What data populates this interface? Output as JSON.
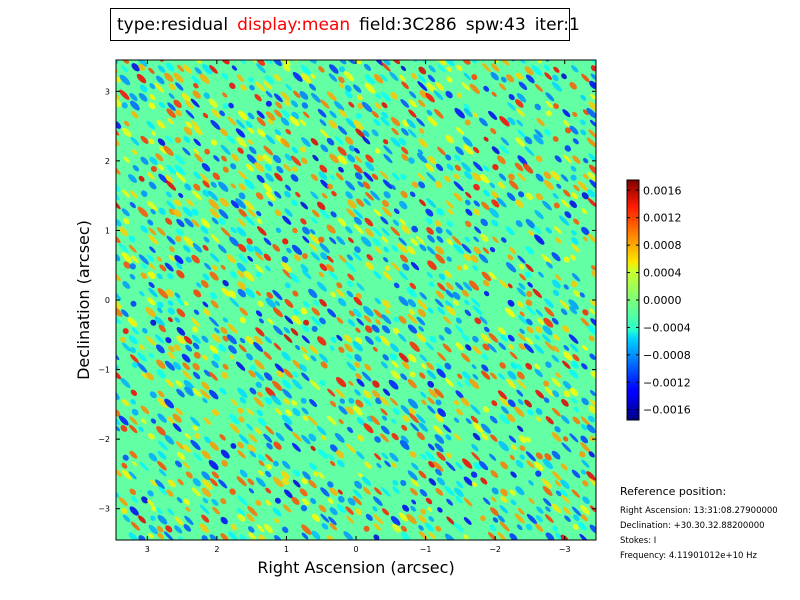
{
  "title": {
    "type": "type:residual",
    "display": "display:mean",
    "field": "field:3C286",
    "spw": "spw:43",
    "iter": "iter:1",
    "display_color": "#ff0000"
  },
  "reference": {
    "title": "Reference position:",
    "ra": "Right Ascension: 13:31:08.27900000",
    "dec": "Declination: +30.30.32.88200000",
    "stokes": "Stokes: I",
    "frequency": "Frequency: 4.11901012e+10 Hz"
  },
  "chart_data": {
    "type": "heatmap",
    "xlabel": "Right Ascension (arcsec)",
    "ylabel": "Declination (arcsec)",
    "xlim": [
      3.45,
      -3.45
    ],
    "ylim": [
      -3.45,
      3.45
    ],
    "x_ticks": [
      {
        "value": 3,
        "label": "3"
      },
      {
        "value": 2,
        "label": "2"
      },
      {
        "value": 1,
        "label": "1"
      },
      {
        "value": 0,
        "label": "0"
      },
      {
        "value": -1,
        "label": "−1"
      },
      {
        "value": -2,
        "label": "−2"
      },
      {
        "value": -3,
        "label": "−3"
      }
    ],
    "y_ticks": [
      {
        "value": 3,
        "label": "3"
      },
      {
        "value": 2,
        "label": "2"
      },
      {
        "value": 1,
        "label": "1"
      },
      {
        "value": 0,
        "label": "0"
      },
      {
        "value": -1,
        "label": "−1"
      },
      {
        "value": -2,
        "label": "−2"
      },
      {
        "value": -3,
        "label": "−3"
      }
    ],
    "colormap": "jet",
    "colorbar": {
      "vmin": -0.00175,
      "vmax": 0.00175,
      "ticks": [
        {
          "value": 0.0016,
          "label": "0.0016"
        },
        {
          "value": 0.0012,
          "label": "0.0012"
        },
        {
          "value": 0.0008,
          "label": "0.0008"
        },
        {
          "value": 0.0004,
          "label": "0.0004"
        },
        {
          "value": 0.0,
          "label": "0.0000"
        },
        {
          "value": -0.0004,
          "label": "−0.0004"
        },
        {
          "value": -0.0008,
          "label": "−0.0008"
        },
        {
          "value": -0.0012,
          "label": "−0.0012"
        },
        {
          "value": -0.0016,
          "label": "−0.0016"
        }
      ]
    }
  }
}
